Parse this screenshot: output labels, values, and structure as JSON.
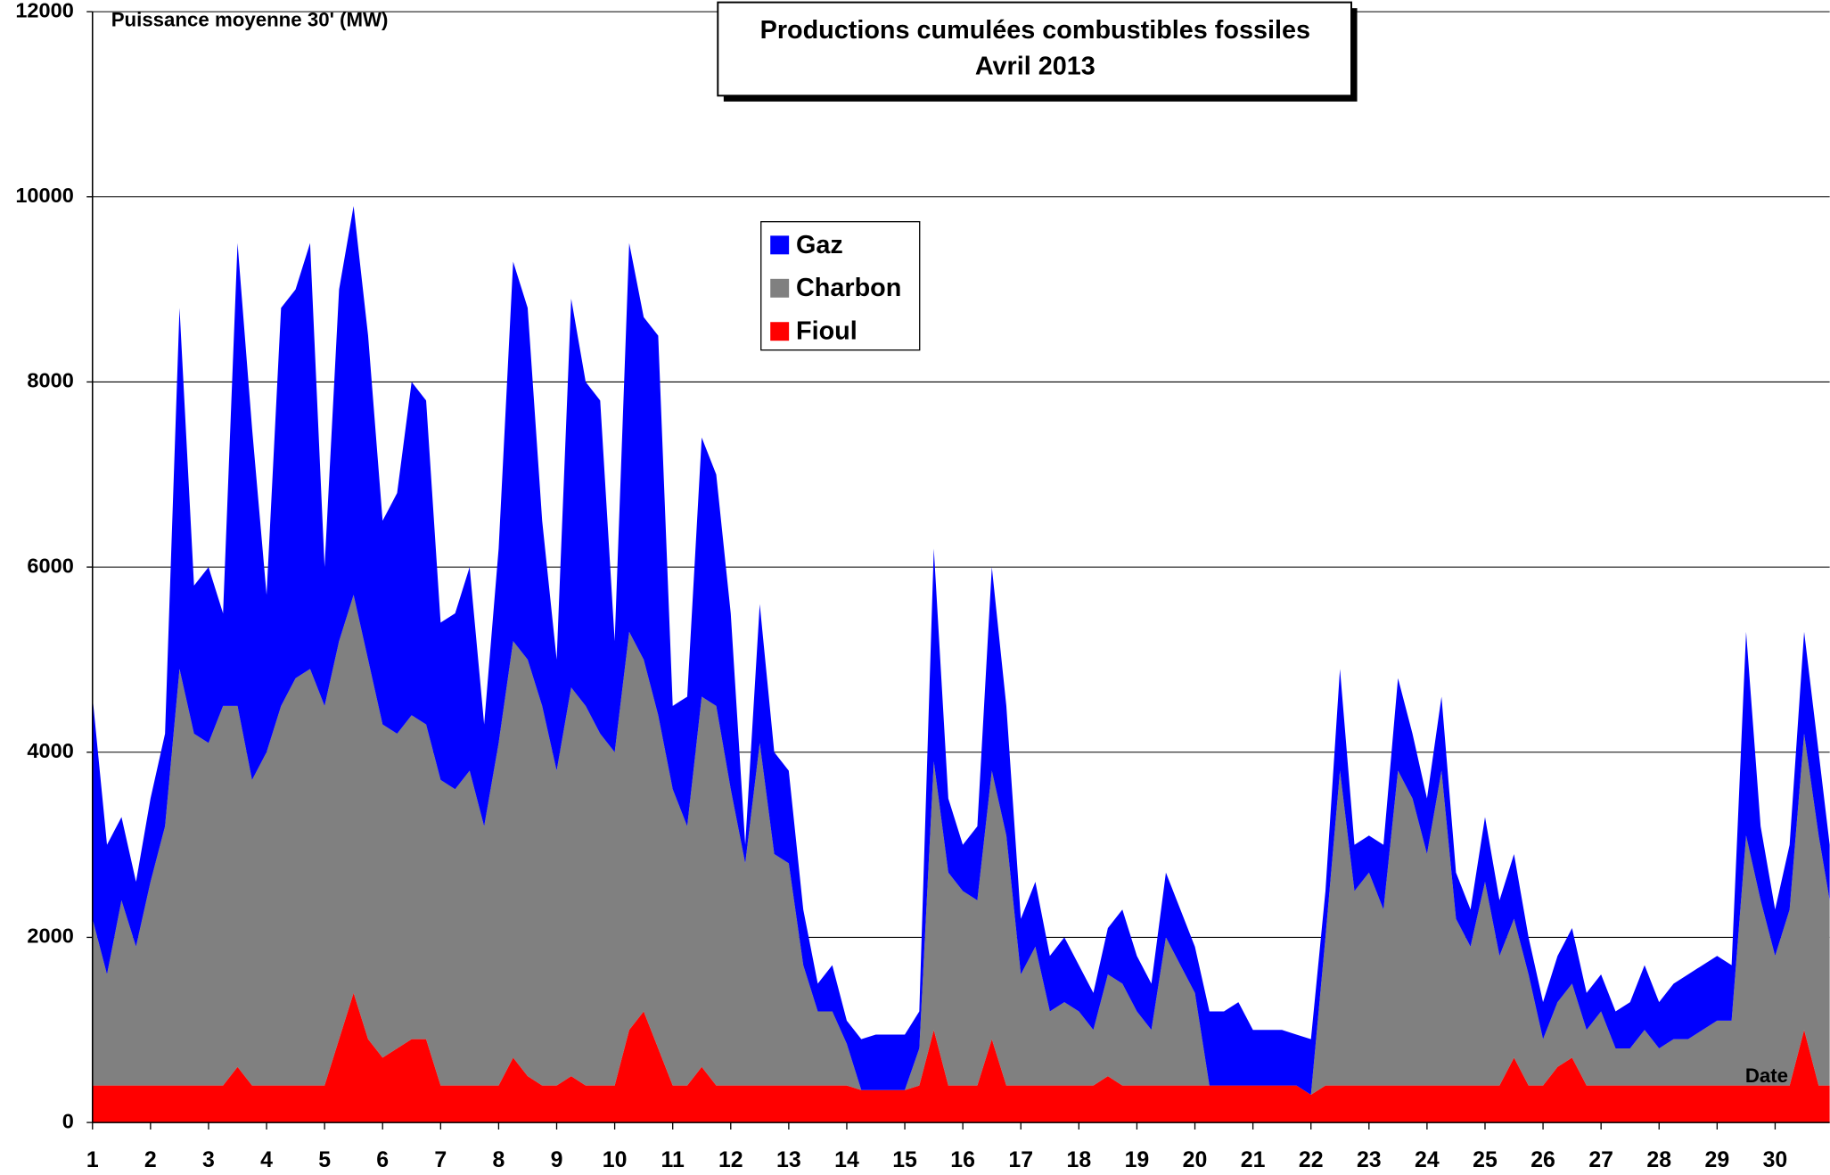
{
  "chart_data": {
    "type": "stacked-area",
    "title": [
      "Productions cumulées combustibles fossiles",
      "Avril  2013"
    ],
    "y_label": "Puissance moyenne 30' (MW)",
    "x_label": "Date",
    "x": [
      1,
      1.25,
      1.5,
      1.75,
      2,
      2.25,
      2.5,
      2.75,
      3,
      3.25,
      3.5,
      3.75,
      4,
      4.25,
      4.5,
      4.75,
      5,
      5.25,
      5.5,
      5.75,
      6,
      6.25,
      6.5,
      6.75,
      7,
      7.25,
      7.5,
      7.75,
      8,
      8.25,
      8.5,
      8.75,
      9,
      9.25,
      9.5,
      9.75,
      10,
      10.25,
      10.5,
      10.75,
      11,
      11.25,
      11.5,
      11.75,
      12,
      12.25,
      12.5,
      12.75,
      13,
      13.25,
      13.5,
      13.75,
      14,
      14.25,
      14.5,
      14.75,
      15,
      15.25,
      15.5,
      15.75,
      16,
      16.25,
      16.5,
      16.75,
      17,
      17.25,
      17.5,
      17.75,
      18,
      18.25,
      18.5,
      18.75,
      19,
      19.25,
      19.5,
      19.75,
      20,
      20.25,
      20.5,
      20.75,
      21,
      21.25,
      21.5,
      21.75,
      22,
      22.25,
      22.5,
      22.75,
      23,
      23.25,
      23.5,
      23.75,
      24,
      24.25,
      24.5,
      24.75,
      25,
      25.25,
      25.5,
      25.75,
      26,
      26.25,
      26.5,
      26.75,
      27,
      27.25,
      27.5,
      27.75,
      28,
      28.25,
      28.5,
      28.75,
      29,
      29.25,
      29.5,
      29.75,
      30,
      30.25,
      30.5,
      30.75,
      30.94
    ],
    "series": [
      {
        "name": "Gaz",
        "color": "#0000ff",
        "values": [
          2400,
          1400,
          900,
          700,
          900,
          1000,
          3900,
          1600,
          1900,
          1000,
          5000,
          3800,
          1700,
          4300,
          4200,
          4600,
          1500,
          3800,
          4200,
          3500,
          2200,
          2600,
          3600,
          3500,
          1700,
          1900,
          2200,
          1100,
          2100,
          4100,
          3800,
          2000,
          1200,
          4200,
          3500,
          3600,
          1200,
          4200,
          3700,
          4100,
          900,
          1400,
          2800,
          2500,
          1900,
          200,
          1500,
          1100,
          1000,
          600,
          300,
          500,
          250,
          550,
          600,
          600,
          600,
          400,
          2300,
          800,
          500,
          800,
          2200,
          1400,
          600,
          700,
          600,
          700,
          500,
          400,
          500,
          800,
          600,
          500,
          700,
          600,
          500,
          800,
          800,
          900,
          600,
          600,
          600,
          550,
          600,
          500,
          1100,
          500,
          400,
          700,
          1000,
          700,
          600,
          800,
          500,
          400,
          700,
          600,
          700,
          400,
          400,
          500,
          600,
          400,
          400,
          400,
          500,
          700,
          500,
          600,
          700,
          700,
          700,
          600,
          2200,
          800,
          500,
          700,
          1100,
          900,
          600
        ]
      },
      {
        "name": "Charbon",
        "color": "#808080",
        "values": [
          1800,
          1200,
          2000,
          1500,
          2200,
          2800,
          4500,
          3800,
          3700,
          4100,
          3900,
          3300,
          3600,
          4100,
          4400,
          4500,
          4100,
          4300,
          4300,
          4100,
          3600,
          3400,
          3500,
          3400,
          3300,
          3200,
          3400,
          2800,
          3700,
          4500,
          4500,
          4100,
          3400,
          4200,
          4100,
          3800,
          3600,
          4300,
          3800,
          3600,
          3200,
          2800,
          4000,
          4100,
          3200,
          2400,
          3700,
          2500,
          2400,
          1300,
          800,
          800,
          450,
          0,
          0,
          0,
          0,
          400,
          2900,
          2300,
          2100,
          2000,
          2900,
          2700,
          1200,
          1500,
          800,
          900,
          800,
          600,
          1100,
          1100,
          800,
          600,
          1600,
          1300,
          1000,
          0,
          0,
          0,
          0,
          0,
          0,
          0,
          0,
          1600,
          3400,
          2100,
          2300,
          1900,
          3400,
          3100,
          2500,
          3400,
          1800,
          1500,
          2200,
          1400,
          1500,
          1200,
          500,
          700,
          800,
          600,
          800,
          400,
          400,
          600,
          400,
          500,
          500,
          600,
          700,
          700,
          2700,
          2000,
          1400,
          1900,
          3200,
          2700,
          2000
        ]
      },
      {
        "name": "Fioul",
        "color": "#ff0000",
        "values": [
          400,
          400,
          400,
          400,
          400,
          400,
          400,
          400,
          400,
          400,
          600,
          400,
          400,
          400,
          400,
          400,
          400,
          900,
          1400,
          900,
          700,
          800,
          900,
          900,
          400,
          400,
          400,
          400,
          400,
          700,
          500,
          400,
          400,
          500,
          400,
          400,
          400,
          1000,
          1200,
          800,
          400,
          400,
          600,
          400,
          400,
          400,
          400,
          400,
          400,
          400,
          400,
          400,
          400,
          350,
          350,
          350,
          350,
          400,
          1000,
          400,
          400,
          400,
          900,
          400,
          400,
          400,
          400,
          400,
          400,
          400,
          500,
          400,
          400,
          400,
          400,
          400,
          400,
          400,
          400,
          400,
          400,
          400,
          400,
          400,
          300,
          400,
          400,
          400,
          400,
          400,
          400,
          400,
          400,
          400,
          400,
          400,
          400,
          400,
          700,
          400,
          400,
          600,
          700,
          400,
          400,
          400,
          400,
          400,
          400,
          400,
          400,
          400,
          400,
          400,
          400,
          400,
          400,
          400,
          1000,
          400,
          400
        ]
      }
    ],
    "xlim": [
      1,
      30.94
    ],
    "xticks": [
      1,
      2,
      3,
      4,
      5,
      6,
      7,
      8,
      9,
      10,
      11,
      12,
      13,
      14,
      15,
      16,
      17,
      18,
      19,
      20,
      21,
      22,
      23,
      24,
      25,
      26,
      27,
      28,
      29,
      30
    ],
    "ylim": [
      0,
      12000
    ],
    "yticks": [
      0,
      2000,
      4000,
      6000,
      8000,
      10000,
      12000
    ],
    "grid": true,
    "legend": "top-center"
  }
}
